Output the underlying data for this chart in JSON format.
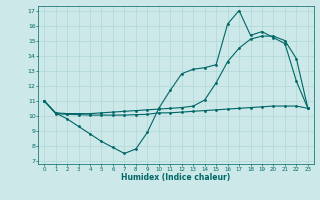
{
  "xlabel": "Humidex (Indice chaleur)",
  "bg_color": "#cce8e8",
  "line_color": "#006666",
  "grid_color": "#b0d8d8",
  "xlim": [
    -0.5,
    23.5
  ],
  "ylim": [
    6.8,
    17.3
  ],
  "xticks": [
    0,
    1,
    2,
    3,
    4,
    5,
    6,
    7,
    8,
    9,
    10,
    11,
    12,
    13,
    14,
    15,
    16,
    17,
    18,
    19,
    20,
    21,
    22,
    23
  ],
  "yticks": [
    7,
    8,
    9,
    10,
    11,
    12,
    13,
    14,
    15,
    16,
    17
  ],
  "line1_x": [
    0,
    1,
    2,
    3,
    4,
    5,
    6,
    7,
    8,
    9,
    10,
    11,
    12,
    13,
    14,
    15,
    16,
    17,
    18,
    19,
    20,
    21,
    22,
    23
  ],
  "line1_y": [
    11.0,
    10.2,
    9.8,
    9.3,
    8.8,
    8.3,
    7.9,
    7.5,
    7.8,
    8.9,
    10.5,
    11.7,
    12.8,
    13.1,
    13.2,
    13.4,
    16.1,
    17.0,
    15.35,
    15.6,
    15.2,
    14.8,
    12.3,
    10.5
  ],
  "line2_x": [
    0,
    1,
    2,
    3,
    4,
    5,
    6,
    7,
    8,
    9,
    10,
    11,
    12,
    13,
    14,
    15,
    16,
    17,
    18,
    19,
    20,
    21,
    22,
    23
  ],
  "line2_y": [
    11.0,
    10.2,
    10.15,
    10.15,
    10.15,
    10.2,
    10.25,
    10.3,
    10.35,
    10.4,
    10.45,
    10.5,
    10.55,
    10.65,
    11.05,
    12.2,
    13.6,
    14.5,
    15.1,
    15.3,
    15.3,
    15.0,
    13.8,
    10.5
  ],
  "line3_x": [
    0,
    1,
    2,
    3,
    4,
    5,
    6,
    7,
    8,
    9,
    10,
    11,
    12,
    13,
    14,
    15,
    16,
    17,
    18,
    19,
    20,
    21,
    22,
    23
  ],
  "line3_y": [
    11.0,
    10.15,
    10.1,
    10.08,
    10.05,
    10.05,
    10.05,
    10.05,
    10.08,
    10.1,
    10.2,
    10.2,
    10.25,
    10.3,
    10.35,
    10.4,
    10.45,
    10.5,
    10.55,
    10.6,
    10.65,
    10.65,
    10.65,
    10.5
  ]
}
